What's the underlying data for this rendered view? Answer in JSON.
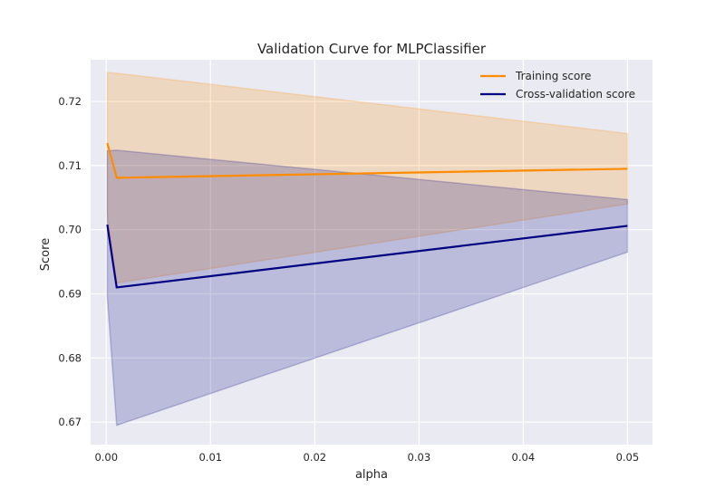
{
  "chart_data": {
    "type": "line",
    "title": "Validation Curve for MLPClassifier",
    "xlabel": "alpha",
    "ylabel": "Score",
    "xlim": [
      -0.0015,
      0.0524
    ],
    "ylim": [
      0.6665,
      0.7265
    ],
    "xticks": [
      0.0,
      0.01,
      0.02,
      0.03,
      0.04,
      0.05
    ],
    "xtick_labels": [
      "0.00",
      "0.01",
      "0.02",
      "0.03",
      "0.04",
      "0.05"
    ],
    "yticks": [
      0.67,
      0.68,
      0.69,
      0.7,
      0.71,
      0.72
    ],
    "ytick_labels": [
      "0.67",
      "0.68",
      "0.69",
      "0.70",
      "0.71",
      "0.72"
    ],
    "grid": true,
    "legend_position": "top-right",
    "x": [
      0.0001,
      0.001,
      0.05
    ],
    "series": [
      {
        "name": "Training score",
        "color": "#ff8c00",
        "values": [
          0.7135,
          0.7081,
          0.7095
        ],
        "lower": [
          0.7025,
          0.6917,
          0.704
        ],
        "upper": [
          0.7245,
          0.7244,
          0.715
        ]
      },
      {
        "name": "Cross-validation score",
        "color": "#000080",
        "values": [
          0.7008,
          0.691,
          0.7006
        ],
        "lower": [
          0.6895,
          0.6695,
          0.6965
        ],
        "upper": [
          0.7123,
          0.7124,
          0.7047
        ]
      }
    ]
  },
  "colors": {
    "plot_background": "#eaeaf2",
    "grid": "#ffffff"
  }
}
